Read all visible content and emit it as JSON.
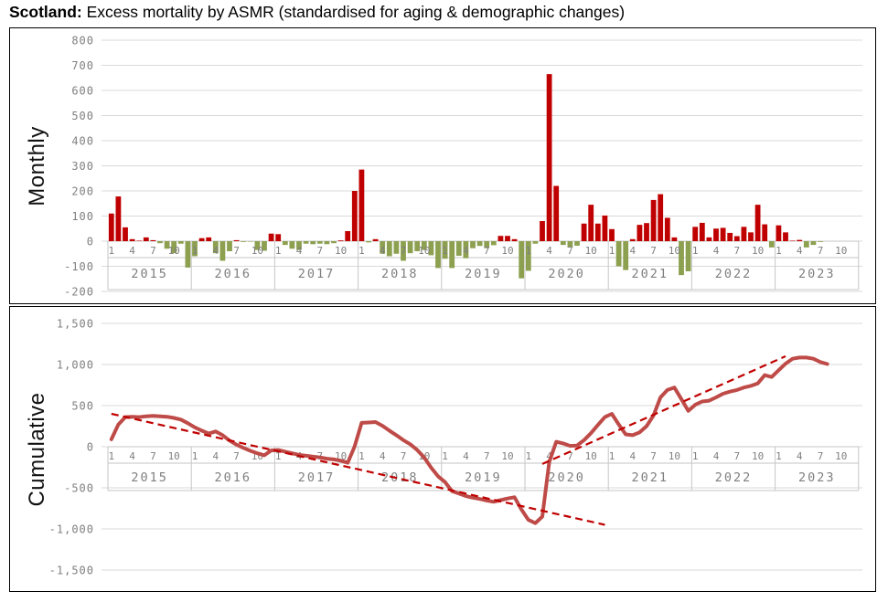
{
  "title": {
    "bold": "Scotland:",
    "rest": " Excess mortality by ASMR (standardised for aging & demographic changes)"
  },
  "colors": {
    "positive_bar": "#C00000",
    "negative_bar": "#8CA050",
    "cumulative_line": "#BE4B48",
    "trendline": "#C00000",
    "gridline": "#D9D9D9",
    "axis_band_border": "#C6C6C6",
    "axis_text": "#7F7F7F",
    "panel_border": "#000000"
  },
  "years": [
    "2015",
    "2016",
    "2017",
    "2018",
    "2019",
    "2020",
    "2021",
    "2022",
    "2023"
  ],
  "chart_data": [
    {
      "type": "bar",
      "axis_title": "Monthly",
      "xlabel": "",
      "ylabel": "Monthly",
      "ylim": [
        -200,
        800
      ],
      "grid": true,
      "ytick_labels": [
        "800",
        "700",
        "600",
        "500",
        "400",
        "300",
        "200",
        "100",
        "0",
        "-100",
        "-200"
      ],
      "month_tick_labels": [
        "1",
        "4",
        "7",
        "10"
      ],
      "month_tick_positions": [
        0,
        3,
        6,
        9
      ],
      "values_by_year": {
        "2015": [
          110,
          178,
          55,
          8,
          2,
          15,
          4,
          -8,
          -30,
          -48,
          -10,
          -105
        ],
        "2016": [
          -60,
          12,
          15,
          -48,
          -78,
          -40,
          4,
          -3,
          -2,
          -35,
          -38,
          30
        ],
        "2017": [
          28,
          -15,
          -30,
          -35,
          -10,
          -12,
          -10,
          -12,
          -8,
          3,
          40,
          200
        ],
        "2018": [
          285,
          -5,
          8,
          -50,
          -60,
          -50,
          -78,
          -48,
          -40,
          -35,
          -56,
          -107
        ],
        "2019": [
          -70,
          -107,
          -58,
          -68,
          -28,
          -19,
          -28,
          -16,
          21,
          21,
          8,
          -148
        ],
        "2020": [
          -118,
          -10,
          80,
          665,
          220,
          -15,
          -25,
          -18,
          70,
          145,
          70,
          102
        ],
        "2021": [
          48,
          -100,
          -115,
          8,
          65,
          72,
          164,
          187,
          93,
          15,
          -135,
          -120
        ],
        "2022": [
          57,
          73,
          15,
          50,
          53,
          33,
          20,
          57,
          35,
          145,
          67,
          -25
        ],
        "2023": [
          63,
          35,
          2,
          5,
          -25,
          -15,
          -3,
          0
        ]
      }
    },
    {
      "type": "line",
      "axis_title": "Cumulative",
      "xlabel": "",
      "ylabel": "Cumulative",
      "ylim": [
        -1500,
        1500
      ],
      "grid": true,
      "ytick_labels": [
        "1,500",
        "1,000",
        "500",
        "0",
        "-500",
        "-1,000",
        "-1,500"
      ],
      "month_tick_labels": [
        "1",
        "4",
        "7",
        "10"
      ],
      "month_tick_positions": [
        0,
        3,
        6,
        9
      ],
      "values_by_year": {
        "2015": [
          90,
          270,
          360,
          365,
          360,
          370,
          375,
          370,
          365,
          350,
          330,
          285
        ],
        "2016": [
          235,
          195,
          160,
          185,
          140,
          75,
          25,
          -15,
          -50,
          -80,
          -105,
          -45
        ],
        "2017": [
          -40,
          -60,
          -80,
          -100,
          -110,
          -120,
          -130,
          -145,
          -155,
          -170,
          -195,
          5
        ],
        "2018": [
          290,
          295,
          300,
          255,
          195,
          140,
          80,
          30,
          -40,
          -130,
          -255,
          -360
        ],
        "2019": [
          -430,
          -540,
          -570,
          -600,
          -620,
          -635,
          -655,
          -670,
          -650,
          -630,
          -615,
          -765
        ],
        "2020": [
          -890,
          -930,
          -850,
          -185,
          60,
          40,
          10,
          15,
          80,
          165,
          265,
          360
        ],
        "2021": [
          400,
          270,
          150,
          140,
          175,
          250,
          380,
          600,
          690,
          720,
          580,
          435
        ],
        "2022": [
          510,
          550,
          560,
          600,
          645,
          670,
          690,
          720,
          740,
          770,
          870,
          848
        ],
        "2023": [
          930,
          1010,
          1070,
          1085,
          1085,
          1070,
          1030,
          1005
        ]
      },
      "trendlines": [
        {
          "name": "declining-pre-pandemic-trend",
          "x1": "2015-01",
          "v1": 400,
          "x2": "2020-12",
          "v2": -950
        },
        {
          "name": "rising-pandemic-trend",
          "x1": "2020-03",
          "v1": -210,
          "x2": "2023-02",
          "v2": 1100
        }
      ]
    }
  ]
}
